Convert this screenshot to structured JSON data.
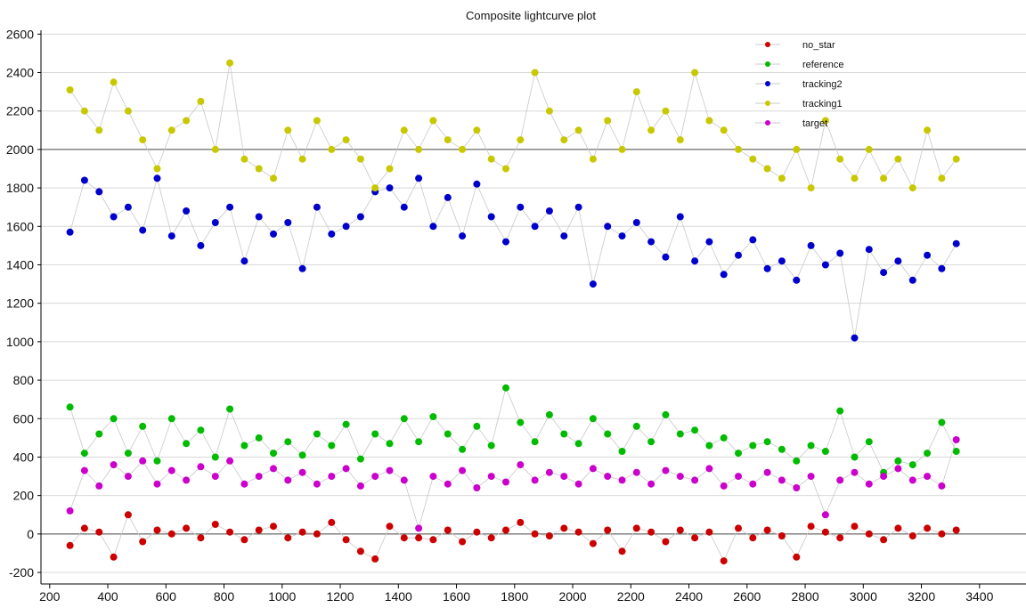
{
  "chart_data": {
    "type": "scatter",
    "title": "Composite lightcurve plot",
    "xlabel": "",
    "ylabel": "",
    "xlim": [
      170,
      3560
    ],
    "ylim": [
      -260,
      2620
    ],
    "x_ticks": [
      200,
      400,
      600,
      800,
      1000,
      1200,
      1400,
      1600,
      1800,
      2000,
      2200,
      2400,
      2600,
      2800,
      3000,
      3200,
      3400
    ],
    "y_ticks": [
      -200,
      0,
      200,
      400,
      600,
      800,
      1000,
      1200,
      1400,
      1600,
      1800,
      2000,
      2200,
      2400,
      2600
    ],
    "reference_lines": [
      0,
      2000
    ],
    "grid": "horizontal",
    "legend_position": "top-right",
    "series": [
      {
        "name": "no_star",
        "color": "#cc0000",
        "x": [
          270,
          320,
          370,
          420,
          470,
          520,
          570,
          620,
          670,
          720,
          770,
          820,
          870,
          920,
          970,
          1020,
          1070,
          1120,
          1170,
          1220,
          1270,
          1320,
          1370,
          1420,
          1470,
          1520,
          1570,
          1620,
          1670,
          1720,
          1770,
          1820,
          1870,
          1920,
          1970,
          2020,
          2070,
          2120,
          2170,
          2220,
          2270,
          2320,
          2370,
          2420,
          2470,
          2520,
          2570,
          2620,
          2670,
          2720,
          2770,
          2820,
          2870,
          2920,
          2970,
          3020,
          3070,
          3120,
          3170,
          3220,
          3270,
          3320
        ],
        "y": [
          -60,
          30,
          10,
          -120,
          100,
          -40,
          20,
          0,
          30,
          -20,
          50,
          10,
          -30,
          20,
          40,
          -20,
          10,
          0,
          60,
          -30,
          -90,
          -130,
          40,
          -20,
          -20,
          -30,
          20,
          -40,
          10,
          -20,
          20,
          60,
          0,
          -10,
          30,
          10,
          -50,
          20,
          -90,
          30,
          10,
          -40,
          20,
          -20,
          10,
          -140,
          30,
          -20,
          20,
          -10,
          -120,
          40,
          10,
          -20,
          40,
          0,
          -30,
          30,
          -10,
          30,
          0,
          20
        ]
      },
      {
        "name": "reference",
        "color": "#00bb00",
        "x": [
          270,
          320,
          370,
          420,
          470,
          520,
          570,
          620,
          670,
          720,
          770,
          820,
          870,
          920,
          970,
          1020,
          1070,
          1120,
          1170,
          1220,
          1270,
          1320,
          1370,
          1420,
          1470,
          1520,
          1570,
          1620,
          1670,
          1720,
          1770,
          1820,
          1870,
          1920,
          1970,
          2020,
          2070,
          2120,
          2170,
          2220,
          2270,
          2320,
          2370,
          2420,
          2470,
          2520,
          2570,
          2620,
          2670,
          2720,
          2770,
          2820,
          2870,
          2920,
          2970,
          3020,
          3070,
          3120,
          3170,
          3220,
          3270,
          3320
        ],
        "y": [
          660,
          420,
          520,
          600,
          420,
          560,
          380,
          600,
          470,
          540,
          400,
          650,
          460,
          500,
          420,
          480,
          410,
          520,
          460,
          570,
          390,
          520,
          470,
          600,
          480,
          610,
          520,
          440,
          560,
          460,
          760,
          580,
          480,
          620,
          520,
          470,
          600,
          520,
          430,
          560,
          480,
          620,
          520,
          540,
          460,
          500,
          420,
          460,
          480,
          440,
          380,
          460,
          430,
          640,
          400,
          480,
          320,
          380,
          360,
          420,
          580,
          430
        ]
      },
      {
        "name": "tracking2",
        "color": "#0000cc",
        "x": [
          270,
          320,
          370,
          420,
          470,
          520,
          570,
          620,
          670,
          720,
          770,
          820,
          870,
          920,
          970,
          1020,
          1070,
          1120,
          1170,
          1220,
          1270,
          1320,
          1370,
          1420,
          1470,
          1520,
          1570,
          1620,
          1670,
          1720,
          1770,
          1820,
          1870,
          1920,
          1970,
          2020,
          2070,
          2120,
          2170,
          2220,
          2270,
          2320,
          2370,
          2420,
          2470,
          2520,
          2570,
          2620,
          2670,
          2720,
          2770,
          2820,
          2870,
          2920,
          2970,
          3020,
          3070,
          3120,
          3170,
          3220,
          3270,
          3320
        ],
        "y": [
          1570,
          1840,
          1780,
          1650,
          1700,
          1580,
          1850,
          1550,
          1680,
          1500,
          1620,
          1700,
          1420,
          1650,
          1560,
          1620,
          1380,
          1700,
          1560,
          1600,
          1650,
          1780,
          1800,
          1700,
          1850,
          1600,
          1750,
          1550,
          1820,
          1650,
          1520,
          1700,
          1600,
          1680,
          1550,
          1700,
          1300,
          1600,
          1550,
          1620,
          1520,
          1440,
          1650,
          1420,
          1520,
          1350,
          1450,
          1530,
          1380,
          1420,
          1320,
          1500,
          1400,
          1460,
          1020,
          1480,
          1360,
          1420,
          1320,
          1450,
          1380,
          1510
        ]
      },
      {
        "name": "tracking1",
        "color": "#c8c800",
        "x": [
          270,
          320,
          370,
          420,
          470,
          520,
          570,
          620,
          670,
          720,
          770,
          820,
          870,
          920,
          970,
          1020,
          1070,
          1120,
          1170,
          1220,
          1270,
          1320,
          1370,
          1420,
          1470,
          1520,
          1570,
          1620,
          1670,
          1720,
          1770,
          1820,
          1870,
          1920,
          1970,
          2020,
          2070,
          2120,
          2170,
          2220,
          2270,
          2320,
          2370,
          2420,
          2470,
          2520,
          2570,
          2620,
          2670,
          2720,
          2770,
          2820,
          2870,
          2920,
          2970,
          3020,
          3070,
          3120,
          3170,
          3220,
          3270,
          3320
        ],
        "y": [
          2310,
          2200,
          2100,
          2350,
          2200,
          2050,
          1900,
          2100,
          2150,
          2250,
          2000,
          2450,
          1950,
          1900,
          1850,
          2100,
          1950,
          2150,
          2000,
          2050,
          1950,
          1800,
          1900,
          2100,
          2000,
          2150,
          2050,
          2000,
          2100,
          1950,
          1900,
          2050,
          2400,
          2200,
          2050,
          2100,
          1950,
          2150,
          2000,
          2300,
          2100,
          2200,
          2050,
          2400,
          2150,
          2100,
          2000,
          1950,
          1900,
          1850,
          2000,
          1800,
          2150,
          1950,
          1850,
          2000,
          1850,
          1950,
          1800,
          2100,
          1850,
          1950
        ]
      },
      {
        "name": "target",
        "color": "#cc00cc",
        "x": [
          270,
          320,
          370,
          420,
          470,
          520,
          570,
          620,
          670,
          720,
          770,
          820,
          870,
          920,
          970,
          1020,
          1070,
          1120,
          1170,
          1220,
          1270,
          1320,
          1370,
          1420,
          1470,
          1520,
          1570,
          1620,
          1670,
          1720,
          1770,
          1820,
          1870,
          1920,
          1970,
          2020,
          2070,
          2120,
          2170,
          2220,
          2270,
          2320,
          2370,
          2420,
          2470,
          2520,
          2570,
          2620,
          2670,
          2720,
          2770,
          2820,
          2870,
          2920,
          2970,
          3020,
          3070,
          3120,
          3170,
          3220,
          3270,
          3320
        ],
        "y": [
          120,
          330,
          250,
          360,
          300,
          380,
          260,
          330,
          280,
          350,
          300,
          380,
          260,
          300,
          340,
          280,
          320,
          260,
          300,
          340,
          250,
          300,
          330,
          280,
          30,
          300,
          260,
          330,
          240,
          300,
          270,
          360,
          280,
          320,
          300,
          260,
          340,
          300,
          280,
          320,
          260,
          330,
          300,
          280,
          340,
          250,
          300,
          260,
          320,
          280,
          240,
          300,
          100,
          280,
          320,
          260,
          300,
          340,
          280,
          300,
          250,
          490
        ]
      }
    ]
  }
}
